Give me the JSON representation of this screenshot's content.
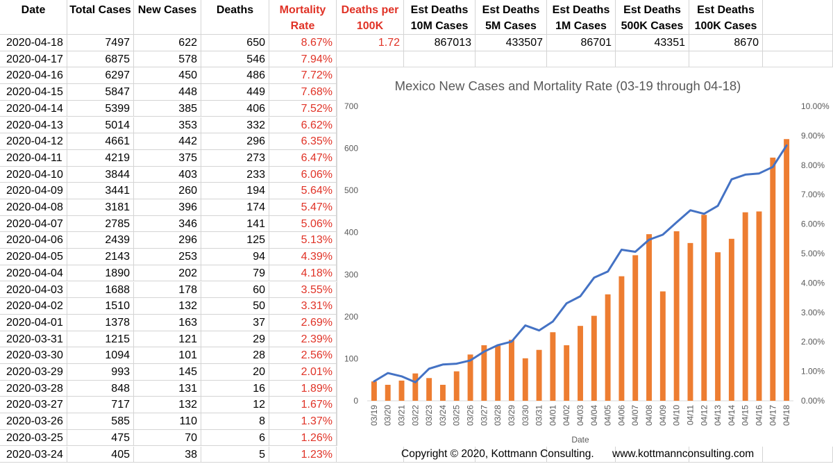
{
  "table": {
    "headers": [
      {
        "line1": "Date",
        "line2": "",
        "red": false
      },
      {
        "line1": "Total Cases",
        "line2": "",
        "red": false
      },
      {
        "line1": "New Cases",
        "line2": "",
        "red": false
      },
      {
        "line1": "Deaths",
        "line2": "",
        "red": false
      },
      {
        "line1": "Mortality",
        "line2": "Rate",
        "red": true
      },
      {
        "line1": "Deaths per",
        "line2": "100K",
        "red": true
      },
      {
        "line1": "Est Deaths",
        "line2": "10M Cases",
        "red": false
      },
      {
        "line1": "Est Deaths",
        "line2": "5M Cases",
        "red": false
      },
      {
        "line1": "Est Deaths",
        "line2": "1M Cases",
        "red": false
      },
      {
        "line1": "Est Deaths",
        "line2": "500K Cases",
        "red": false
      },
      {
        "line1": "Est Deaths",
        "line2": "100K Cases",
        "red": false
      }
    ],
    "rows": [
      [
        "2020-04-18",
        "7497",
        "622",
        "650",
        "8.67%"
      ],
      [
        "2020-04-17",
        "6875",
        "578",
        "546",
        "7.94%"
      ],
      [
        "2020-04-16",
        "6297",
        "450",
        "486",
        "7.72%"
      ],
      [
        "2020-04-15",
        "5847",
        "448",
        "449",
        "7.68%"
      ],
      [
        "2020-04-14",
        "5399",
        "385",
        "406",
        "7.52%"
      ],
      [
        "2020-04-13",
        "5014",
        "353",
        "332",
        "6.62%"
      ],
      [
        "2020-04-12",
        "4661",
        "442",
        "296",
        "6.35%"
      ],
      [
        "2020-04-11",
        "4219",
        "375",
        "273",
        "6.47%"
      ],
      [
        "2020-04-10",
        "3844",
        "403",
        "233",
        "6.06%"
      ],
      [
        "2020-04-09",
        "3441",
        "260",
        "194",
        "5.64%"
      ],
      [
        "2020-04-08",
        "3181",
        "396",
        "174",
        "5.47%"
      ],
      [
        "2020-04-07",
        "2785",
        "346",
        "141",
        "5.06%"
      ],
      [
        "2020-04-06",
        "2439",
        "296",
        "125",
        "5.13%"
      ],
      [
        "2020-04-05",
        "2143",
        "253",
        "94",
        "4.39%"
      ],
      [
        "2020-04-04",
        "1890",
        "202",
        "79",
        "4.18%"
      ],
      [
        "2020-04-03",
        "1688",
        "178",
        "60",
        "3.55%"
      ],
      [
        "2020-04-02",
        "1510",
        "132",
        "50",
        "3.31%"
      ],
      [
        "2020-04-01",
        "1378",
        "163",
        "37",
        "2.69%"
      ],
      [
        "2020-03-31",
        "1215",
        "121",
        "29",
        "2.39%"
      ],
      [
        "2020-03-30",
        "1094",
        "101",
        "28",
        "2.56%"
      ],
      [
        "2020-03-29",
        "993",
        "145",
        "20",
        "2.01%"
      ],
      [
        "2020-03-28",
        "848",
        "131",
        "16",
        "1.89%"
      ],
      [
        "2020-03-27",
        "717",
        "132",
        "12",
        "1.67%"
      ],
      [
        "2020-03-26",
        "585",
        "110",
        "8",
        "1.37%"
      ],
      [
        "2020-03-25",
        "475",
        "70",
        "6",
        "1.26%"
      ],
      [
        "2020-03-24",
        "405",
        "38",
        "5",
        "1.23%"
      ]
    ],
    "first_row_extra": [
      "1.72",
      "867013",
      "433507",
      "86701",
      "43351",
      "8670"
    ]
  },
  "colors": {
    "red_text": "#e03226",
    "bar": "#ed7d31",
    "line": "#4472c4",
    "axis_text": "#595959",
    "grid": "#d9d9d9"
  },
  "chart_data": {
    "type": "bar+line",
    "title": "Mexico New Cases and Mortality Rate (03-19 through 04-18)",
    "xlabel": "Date",
    "ylabel": "",
    "categories": [
      "03/19",
      "03/20",
      "03/21",
      "03/22",
      "03/23",
      "03/24",
      "03/25",
      "03/26",
      "03/27",
      "03/28",
      "03/29",
      "03/30",
      "03/31",
      "04/01",
      "04/02",
      "04/03",
      "04/04",
      "04/05",
      "04/06",
      "04/07",
      "04/08",
      "04/09",
      "04/10",
      "04/11",
      "04/12",
      "04/13",
      "04/14",
      "04/15",
      "04/16",
      "04/17",
      "04/18"
    ],
    "series": [
      {
        "type": "bar",
        "axis": "left",
        "values": [
          46,
          38,
          48,
          65,
          54,
          38,
          70,
          110,
          132,
          131,
          145,
          101,
          121,
          163,
          132,
          178,
          202,
          253,
          296,
          346,
          396,
          260,
          403,
          375,
          442,
          353,
          385,
          448,
          450,
          578,
          622
        ]
      },
      {
        "type": "line",
        "axis": "right",
        "values": [
          0.0066,
          0.0094,
          0.0083,
          0.0063,
          0.0109,
          0.0123,
          0.0126,
          0.0137,
          0.0167,
          0.0189,
          0.0201,
          0.0256,
          0.0239,
          0.0269,
          0.0331,
          0.0355,
          0.0418,
          0.0439,
          0.0513,
          0.0506,
          0.0547,
          0.0564,
          0.0606,
          0.0647,
          0.0635,
          0.0662,
          0.0752,
          0.0768,
          0.0772,
          0.0794,
          0.0867
        ]
      }
    ],
    "ylim": [
      0,
      700
    ],
    "yticks": [
      "0",
      "100",
      "200",
      "300",
      "400",
      "500",
      "600",
      "700"
    ],
    "y2lim": [
      0,
      0.1
    ],
    "y2ticks": [
      "0.00%",
      "1.00%",
      "2.00%",
      "3.00%",
      "4.00%",
      "5.00%",
      "6.00%",
      "7.00%",
      "8.00%",
      "9.00%",
      "10.00%"
    ],
    "grid": false,
    "legend": "none"
  },
  "footer": {
    "copyright": "Copyright © 2020, Kottmann Consulting.",
    "website": "www.kottmannconsulting.com"
  }
}
